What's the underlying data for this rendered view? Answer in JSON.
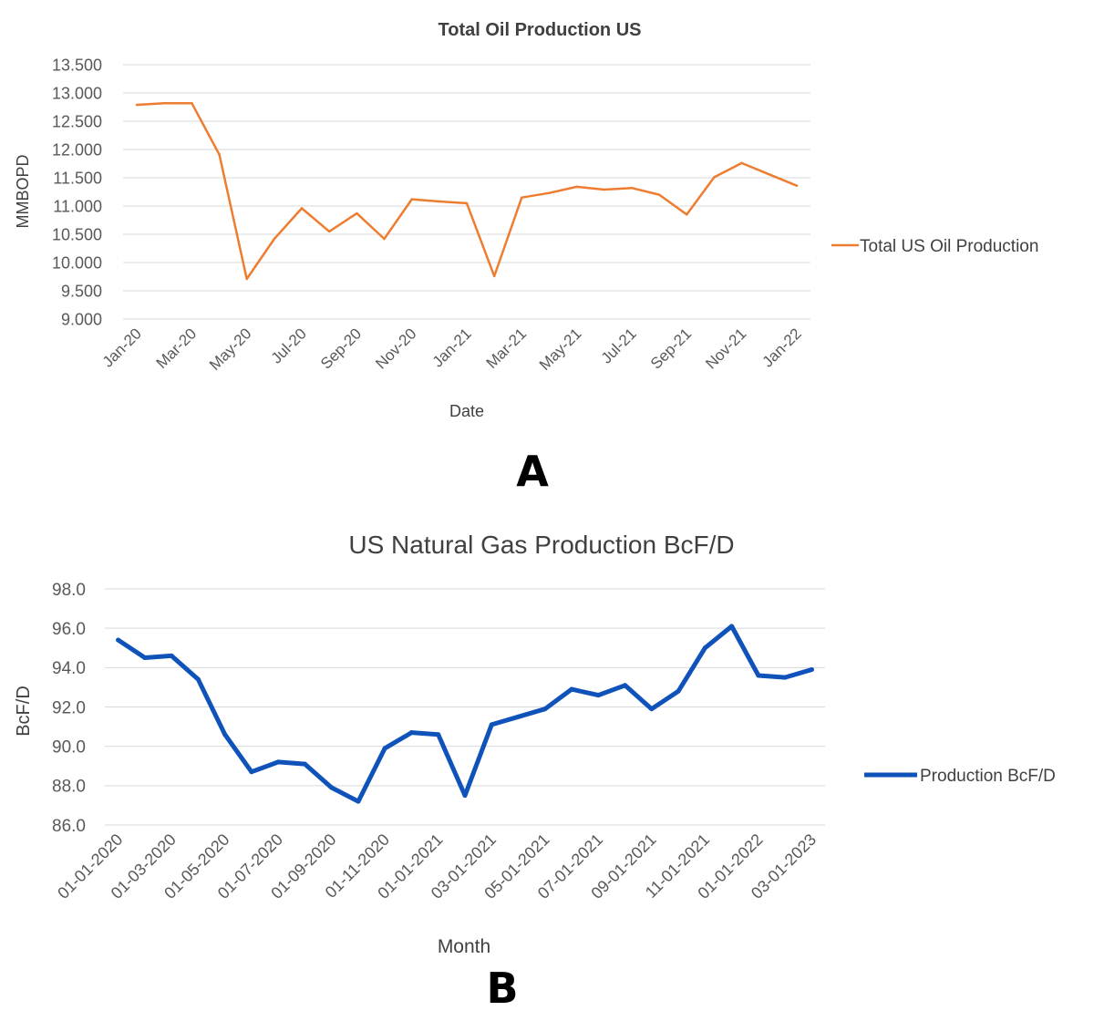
{
  "chart_data": [
    {
      "type": "line",
      "title": "Total Oil Production US",
      "xlabel": "Date",
      "ylabel": "MMBOPD",
      "ylim": [
        9.0,
        13.5
      ],
      "yticks": [
        "13.500",
        "13.000",
        "12.500",
        "12.000",
        "11.500",
        "11.000",
        "10.500",
        "10.000",
        "9.500",
        "9.000"
      ],
      "x": [
        "Jan-20",
        "Feb-20",
        "Mar-20",
        "Apr-20",
        "May-20",
        "Jun-20",
        "Jul-20",
        "Aug-20",
        "Sep-20",
        "Oct-20",
        "Nov-20",
        "Dec-20",
        "Jan-21",
        "Feb-21",
        "Mar-21",
        "Apr-21",
        "May-21",
        "Jun-21",
        "Jul-21",
        "Aug-21",
        "Sep-21",
        "Oct-21",
        "Nov-21",
        "Dec-21",
        "Jan-22"
      ],
      "xtick_labels": [
        "Jan-20",
        "Mar-20",
        "May-20",
        "Jul-20",
        "Sep-20",
        "Nov-20",
        "Jan-21",
        "Mar-21",
        "May-21",
        "Jul-21",
        "Sep-21",
        "Nov-21",
        "Jan-22"
      ],
      "series": [
        {
          "name": "Total US Oil Production",
          "color": "#ED7D31",
          "values": [
            12.79,
            12.82,
            12.82,
            11.91,
            9.71,
            10.42,
            10.96,
            10.55,
            10.87,
            10.42,
            11.12,
            11.08,
            11.05,
            9.76,
            11.15,
            11.23,
            11.34,
            11.29,
            11.32,
            11.2,
            10.85,
            11.51,
            11.76,
            11.56,
            11.36
          ]
        }
      ],
      "grid": true,
      "legend": "right",
      "panel_label": "A"
    },
    {
      "type": "line",
      "title": "US Natural Gas Production BcF/D",
      "xlabel": "Month",
      "ylabel": "BcF/D",
      "ylim": [
        86.0,
        98.0
      ],
      "yticks": [
        "98.0",
        "96.0",
        "94.0",
        "92.0",
        "90.0",
        "88.0",
        "86.0"
      ],
      "x": [
        "01-01-2020",
        "01-02-2020",
        "01-03-2020",
        "01-04-2020",
        "01-05-2020",
        "01-06-2020",
        "01-07-2020",
        "01-08-2020",
        "01-09-2020",
        "01-10-2020",
        "01-11-2020",
        "01-12-2020",
        "01-01-2021",
        "01-02-2021",
        "03-01-2021",
        "04-01-2021",
        "05-01-2021",
        "06-01-2021",
        "07-01-2021",
        "08-01-2021",
        "09-01-2021",
        "10-01-2021",
        "11-01-2021",
        "12-01-2021",
        "01-01-2022",
        "02-01-2023",
        "03-01-2023"
      ],
      "xtick_labels": [
        "01-01-2020",
        "01-03-2020",
        "01-05-2020",
        "01-07-2020",
        "01-09-2020",
        "01-11-2020",
        "01-01-2021",
        "03-01-2021",
        "05-01-2021",
        "07-01-2021",
        "09-01-2021",
        "11-01-2021",
        "01-01-2022",
        "03-01-2023"
      ],
      "series": [
        {
          "name": "Production BcF/D",
          "color": "#0F52BA",
          "values": [
            95.4,
            94.5,
            94.6,
            93.4,
            90.6,
            88.7,
            89.2,
            89.1,
            87.9,
            87.2,
            89.9,
            90.7,
            90.6,
            87.5,
            91.1,
            91.5,
            91.9,
            92.9,
            92.6,
            93.1,
            91.9,
            92.8,
            95.0,
            96.1,
            93.6,
            93.5,
            93.9
          ]
        }
      ],
      "grid": true,
      "legend": "right",
      "panel_label": "B"
    }
  ]
}
